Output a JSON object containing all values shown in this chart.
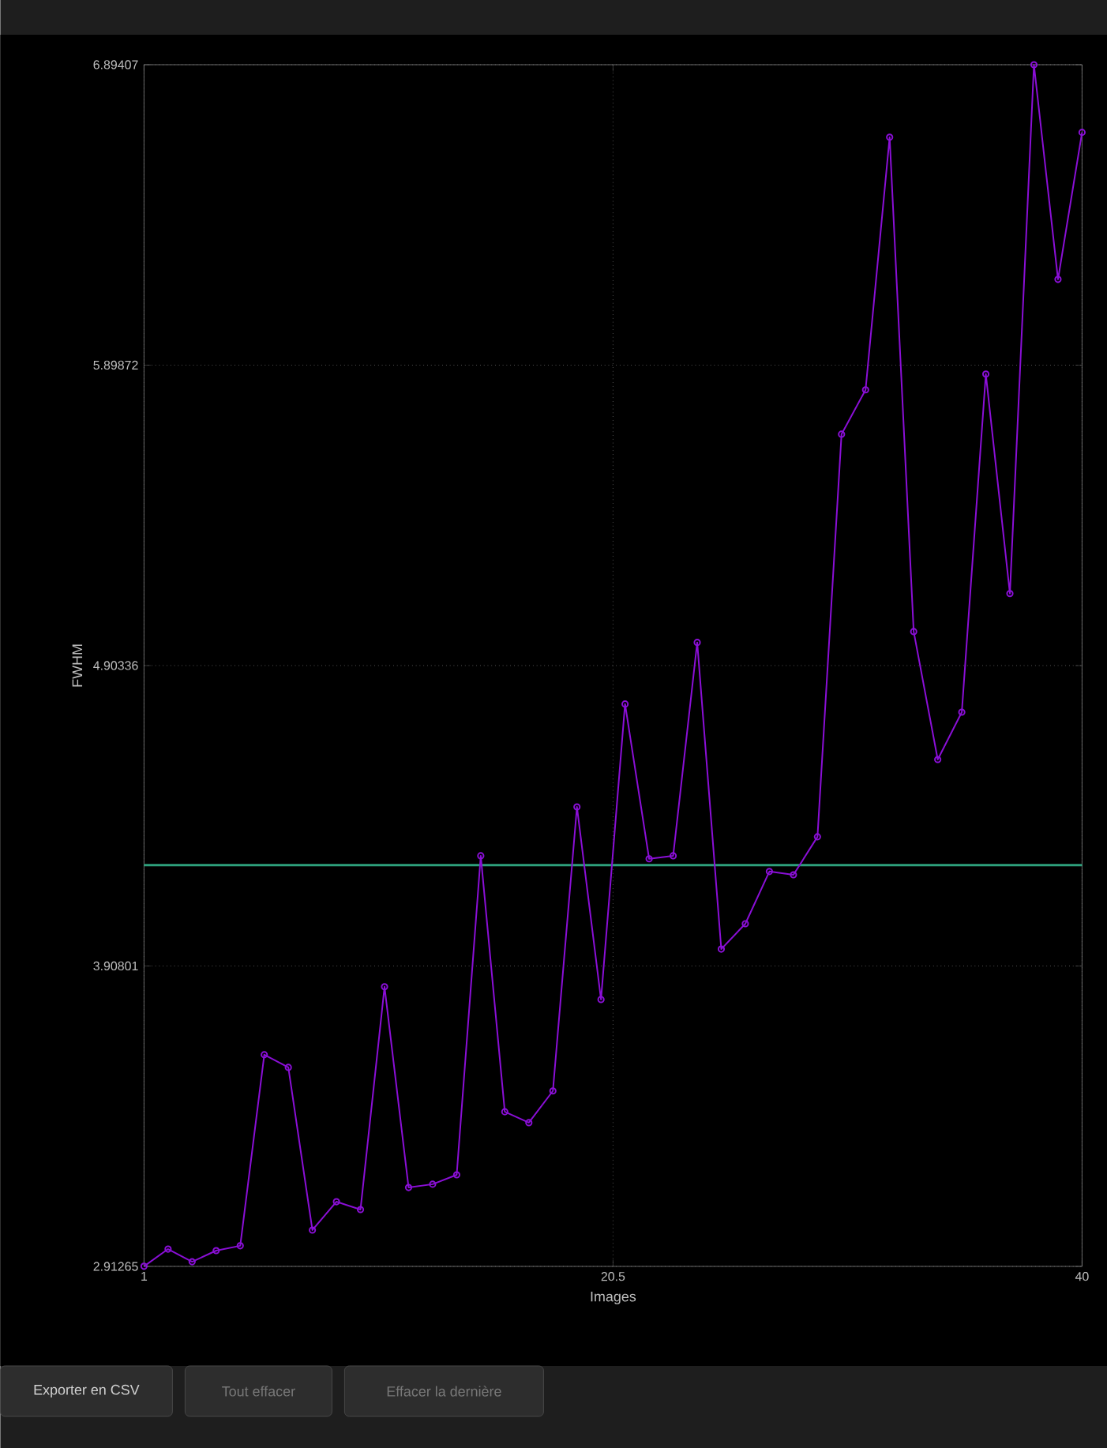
{
  "chart_data": {
    "type": "line",
    "xlabel": "Images",
    "ylabel": "FWHM",
    "x": [
      1,
      2,
      3,
      4,
      5,
      6,
      7,
      8,
      9,
      10,
      11,
      12,
      13,
      14,
      15,
      16,
      17,
      18,
      19,
      20,
      21,
      22,
      23,
      24,
      25,
      26,
      27,
      28,
      29,
      30,
      31,
      32,
      33,
      34,
      35,
      36,
      37,
      38,
      39,
      40
    ],
    "series": [
      {
        "color": "#8a0fd6",
        "values": [
          2.913,
          2.97,
          2.928,
          2.965,
          2.981,
          3.614,
          3.572,
          3.033,
          3.127,
          3.101,
          3.839,
          3.174,
          3.185,
          3.216,
          4.273,
          3.425,
          3.389,
          3.494,
          4.435,
          3.797,
          4.776,
          4.263,
          4.273,
          4.98,
          3.964,
          4.048,
          4.221,
          4.21,
          4.336,
          5.67,
          5.817,
          6.654,
          5.016,
          4.592,
          4.749,
          5.869,
          5.142,
          6.894,
          6.183,
          6.67
        ]
      }
    ],
    "xlim": [
      1,
      40
    ],
    "xticks": [
      1,
      20.5,
      40
    ],
    "ylim": [
      2.91265,
      6.89407
    ],
    "yticks": [
      2.91265,
      3.90801,
      4.90336,
      5.89872,
      6.89407
    ],
    "ref_lines": [
      {
        "axis": "y",
        "value": 4.242,
        "color": "#2ea07c"
      }
    ],
    "grid": true,
    "marker": "circle",
    "line_style": "solid",
    "annotations": [
      "Exporter en CSV",
      "Tout effacer",
      "Effacer la dernière"
    ]
  }
}
